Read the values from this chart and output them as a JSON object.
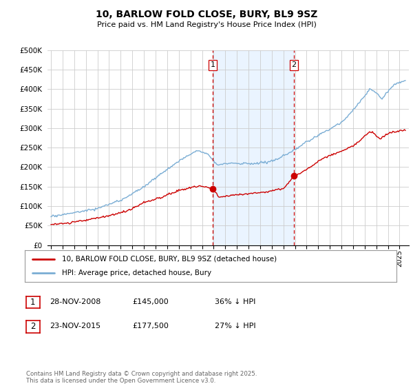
{
  "title": "10, BARLOW FOLD CLOSE, BURY, BL9 9SZ",
  "subtitle": "Price paid vs. HM Land Registry's House Price Index (HPI)",
  "ylabel_ticks": [
    "£0",
    "£50K",
    "£100K",
    "£150K",
    "£200K",
    "£250K",
    "£300K",
    "£350K",
    "£400K",
    "£450K",
    "£500K"
  ],
  "ytick_values": [
    0,
    50000,
    100000,
    150000,
    200000,
    250000,
    300000,
    350000,
    400000,
    450000,
    500000
  ],
  "ylim": [
    0,
    500000
  ],
  "xlim_start": 1994.7,
  "xlim_end": 2025.8,
  "transaction1_x": 2008.91,
  "transaction1_y": 145000,
  "transaction2_x": 2015.9,
  "transaction2_y": 177500,
  "vline1_x": 2008.91,
  "vline2_x": 2015.9,
  "shade_color": "#ddeeff",
  "shade_alpha": 0.6,
  "red_line_color": "#cc0000",
  "blue_line_color": "#7aadd4",
  "vline_color": "#cc0000",
  "legend_label_red": "10, BARLOW FOLD CLOSE, BURY, BL9 9SZ (detached house)",
  "legend_label_blue": "HPI: Average price, detached house, Bury",
  "note1_num": "1",
  "note1_date": "28-NOV-2008",
  "note1_price": "£145,000",
  "note1_hpi": "36% ↓ HPI",
  "note2_num": "2",
  "note2_date": "23-NOV-2015",
  "note2_price": "£177,500",
  "note2_hpi": "27% ↓ HPI",
  "footnote": "Contains HM Land Registry data © Crown copyright and database right 2025.\nThis data is licensed under the Open Government Licence v3.0.",
  "background_color": "#ffffff",
  "grid_color": "#cccccc"
}
